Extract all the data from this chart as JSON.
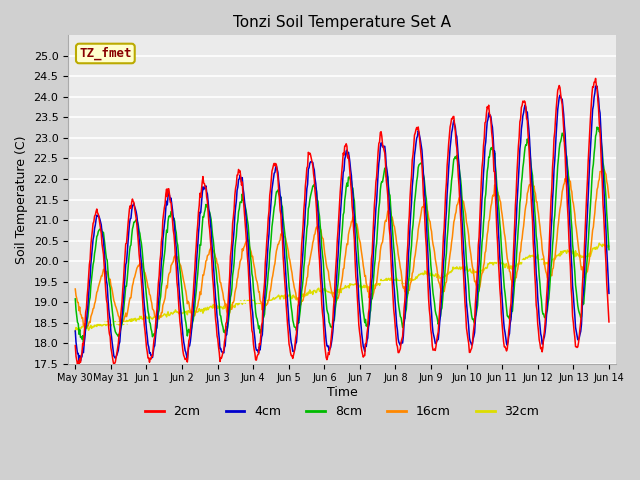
{
  "title": "Tonzi Soil Temperature Set A",
  "xlabel": "Time",
  "ylabel": "Soil Temperature (C)",
  "ylim": [
    17.5,
    25.5
  ],
  "bg_color": "#d0d0d0",
  "plot_bg_color": "#ebebeb",
  "annotation_text": "TZ_fmet",
  "annotation_bg": "#ffffcc",
  "annotation_border": "#bbaa00",
  "line_colors": {
    "2cm": "#ff0000",
    "4cm": "#0000cc",
    "8cm": "#00bb00",
    "16cm": "#ff8800",
    "32cm": "#dddd00"
  },
  "xtick_labels": [
    "May 30",
    "May 31",
    "Jun 1",
    "Jun 2",
    "Jun 3",
    "Jun 4",
    "Jun 5",
    "Jun 6",
    "Jun 7",
    "Jun 8",
    "Jun 9",
    "Jun 10",
    "Jun 11",
    "Jun 12",
    "Jun 13",
    "Jun 14"
  ],
  "ytick_vals": [
    17.5,
    18.0,
    18.5,
    19.0,
    19.5,
    20.0,
    20.5,
    21.0,
    21.5,
    22.0,
    22.5,
    23.0,
    23.5,
    24.0,
    24.5,
    25.0
  ]
}
